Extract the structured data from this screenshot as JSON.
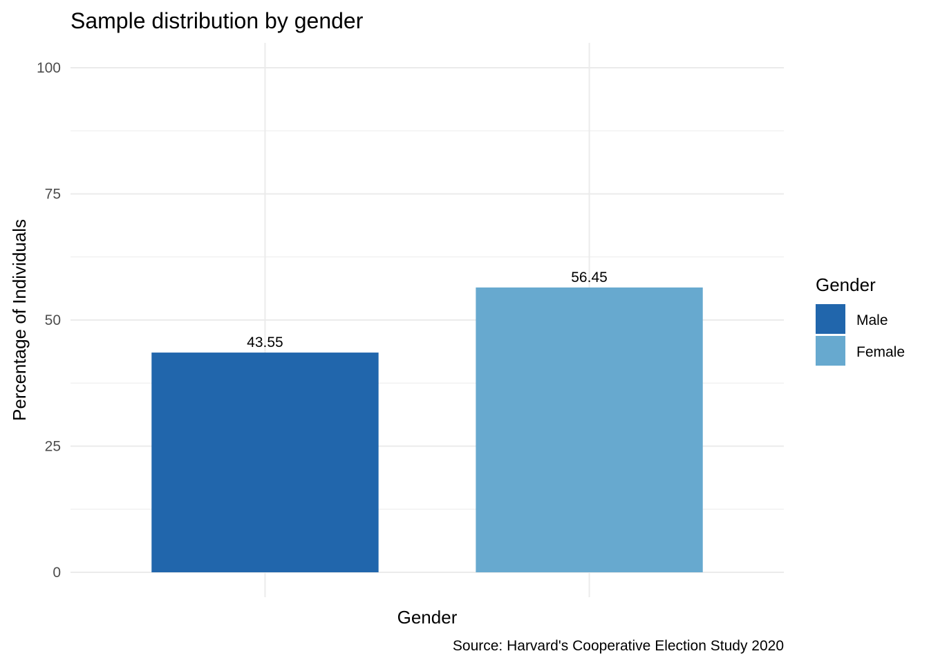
{
  "chart_data": {
    "type": "bar",
    "title": "Sample distribution by gender",
    "xlabel": "Gender",
    "ylabel": "Percentage of Individuals",
    "caption": "Source: Harvard's Cooperative Election Study 2020",
    "categories": [
      "Male",
      "Female"
    ],
    "values": [
      43.55,
      56.45
    ],
    "value_labels": [
      "43.55",
      "56.45"
    ],
    "ylim": [
      0,
      100
    ],
    "y_ticks": [
      0,
      25,
      50,
      75,
      100
    ],
    "y_minor_ticks": [
      12.5,
      37.5,
      62.5,
      87.5
    ],
    "show_x_tick_labels": false,
    "grid": true,
    "legend": {
      "title": "Gender",
      "position": "right",
      "entries": [
        "Male",
        "Female"
      ]
    },
    "colors": {
      "Male": "#2166ac",
      "Female": "#67a9cf",
      "grid": "#ebebeb",
      "axis_text": "#4d4d4d",
      "text": "#000000"
    }
  }
}
